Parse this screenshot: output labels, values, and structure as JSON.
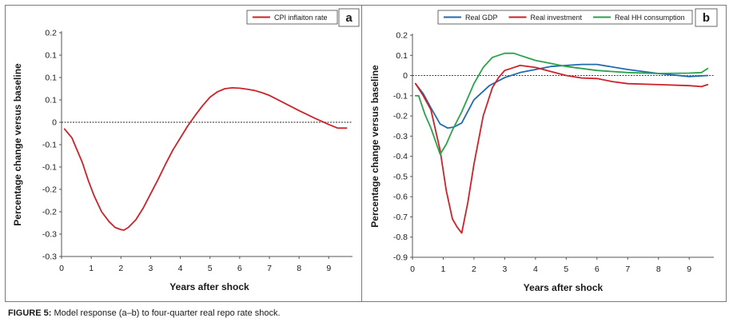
{
  "caption": {
    "label": "FIGURE 5:",
    "text": " Model response (a–b) to four-quarter real repo rate shock."
  },
  "chart_data": [
    {
      "type": "line",
      "panel": "a",
      "xlabel": "Years after shock",
      "ylabel": "Percentage change versus baseline",
      "xlim": [
        0,
        9.8
      ],
      "ylim": [
        -0.3,
        0.2
      ],
      "x_ticks": [
        0,
        1,
        2,
        3,
        4,
        5,
        6,
        7,
        8,
        9
      ],
      "x_tick_labels": [
        "0",
        "1",
        "2",
        "3",
        "4",
        "5",
        "6",
        "7",
        "8",
        "9"
      ],
      "y_ticks": [
        0.2,
        0.15,
        0.1,
        0.05,
        0,
        -0.05,
        -0.1,
        -0.15,
        -0.2,
        -0.25,
        -0.3
      ],
      "y_tick_labels": [
        "0.2",
        "0.1",
        "0.1",
        "0.1",
        "0",
        "-0.1",
        "-0.1",
        "-0.2",
        "-0.2",
        "-0.3",
        "-0.3"
      ],
      "zero_line": true,
      "legend_position": "top-right",
      "series": [
        {
          "name": "CPI inflaiton rate",
          "color": "#cc2229",
          "x": [
            0.1,
            0.35,
            0.7,
            0.9,
            1.1,
            1.35,
            1.6,
            1.8,
            2.0,
            2.1,
            2.25,
            2.5,
            2.75,
            3.0,
            3.25,
            3.5,
            3.75,
            4.0,
            4.25,
            4.5,
            4.75,
            5.0,
            5.25,
            5.5,
            5.75,
            6.0,
            6.25,
            6.5,
            6.75,
            7.0,
            7.5,
            8.0,
            8.5,
            9.0,
            9.3,
            9.6
          ],
          "y": [
            -0.015,
            -0.035,
            -0.09,
            -0.13,
            -0.165,
            -0.2,
            -0.222,
            -0.235,
            -0.24,
            -0.241,
            -0.235,
            -0.218,
            -0.192,
            -0.16,
            -0.128,
            -0.094,
            -0.062,
            -0.035,
            -0.008,
            0.015,
            0.037,
            0.056,
            0.068,
            0.075,
            0.077,
            0.076,
            0.074,
            0.071,
            0.066,
            0.06,
            0.043,
            0.026,
            0.01,
            -0.005,
            -0.013,
            -0.013
          ]
        }
      ]
    },
    {
      "type": "line",
      "panel": "b",
      "xlabel": "Years after shock",
      "ylabel": "Percentage change versus baseline",
      "xlim": [
        0,
        9.8
      ],
      "ylim": [
        -0.9,
        0.2
      ],
      "x_ticks": [
        0,
        1,
        2,
        3,
        4,
        5,
        6,
        7,
        8,
        9
      ],
      "x_tick_labels": [
        "0",
        "1",
        "2",
        "3",
        "4",
        "5",
        "6",
        "7",
        "8",
        "9"
      ],
      "y_ticks": [
        0.2,
        0.1,
        0,
        -0.1,
        -0.2,
        -0.3,
        -0.4,
        -0.5,
        -0.6,
        -0.7,
        -0.8,
        -0.9
      ],
      "y_tick_labels": [
        "0.2",
        "0.1",
        "0",
        "-0.1",
        "-0.2",
        "-0.3",
        "-0.4",
        "-0.5",
        "-0.6",
        "-0.7",
        "-0.8",
        "-0.9"
      ],
      "zero_line": true,
      "legend_position": "top",
      "series": [
        {
          "name": "Real GDP",
          "color": "#2169b0",
          "x": [
            0.1,
            0.35,
            0.6,
            0.9,
            1.15,
            1.35,
            1.6,
            2.0,
            2.5,
            3.0,
            3.5,
            4.0,
            4.5,
            5.0,
            5.5,
            6.0,
            7.0,
            8.0,
            9.0,
            9.6
          ],
          "y": [
            -0.04,
            -0.09,
            -0.16,
            -0.24,
            -0.26,
            -0.255,
            -0.235,
            -0.12,
            -0.05,
            -0.01,
            0.015,
            0.03,
            0.045,
            0.05,
            0.055,
            0.055,
            0.03,
            0.01,
            -0.005,
            0.0
          ]
        },
        {
          "name": "Real investment",
          "color": "#cc2229",
          "x": [
            0.1,
            0.35,
            0.6,
            0.9,
            1.1,
            1.3,
            1.45,
            1.6,
            1.8,
            2.0,
            2.3,
            2.6,
            2.8,
            3.0,
            3.2,
            3.5,
            4.0,
            4.5,
            5.0,
            5.5,
            6.0,
            6.5,
            7.0,
            8.0,
            9.0,
            9.4,
            9.6
          ],
          "y": [
            -0.04,
            -0.1,
            -0.17,
            -0.37,
            -0.57,
            -0.71,
            -0.75,
            -0.78,
            -0.63,
            -0.44,
            -0.2,
            -0.06,
            -0.01,
            0.025,
            0.035,
            0.05,
            0.04,
            0.02,
            0.0,
            -0.012,
            -0.015,
            -0.03,
            -0.04,
            -0.045,
            -0.05,
            -0.055,
            -0.045
          ]
        },
        {
          "name": "Real HH consumption",
          "color": "#2ba24c",
          "x": [
            0.1,
            0.2,
            0.4,
            0.6,
            0.9,
            1.1,
            1.3,
            1.6,
            2.0,
            2.3,
            2.6,
            3.0,
            3.3,
            3.5,
            3.8,
            4.0,
            4.5,
            5.0,
            6.0,
            7.0,
            8.0,
            9.0,
            9.4,
            9.6
          ],
          "y": [
            -0.1,
            -0.1,
            -0.19,
            -0.26,
            -0.39,
            -0.34,
            -0.27,
            -0.18,
            -0.04,
            0.04,
            0.09,
            0.11,
            0.11,
            0.1,
            0.085,
            0.075,
            0.06,
            0.045,
            0.025,
            0.015,
            0.01,
            0.012,
            0.015,
            0.035
          ]
        }
      ]
    }
  ]
}
